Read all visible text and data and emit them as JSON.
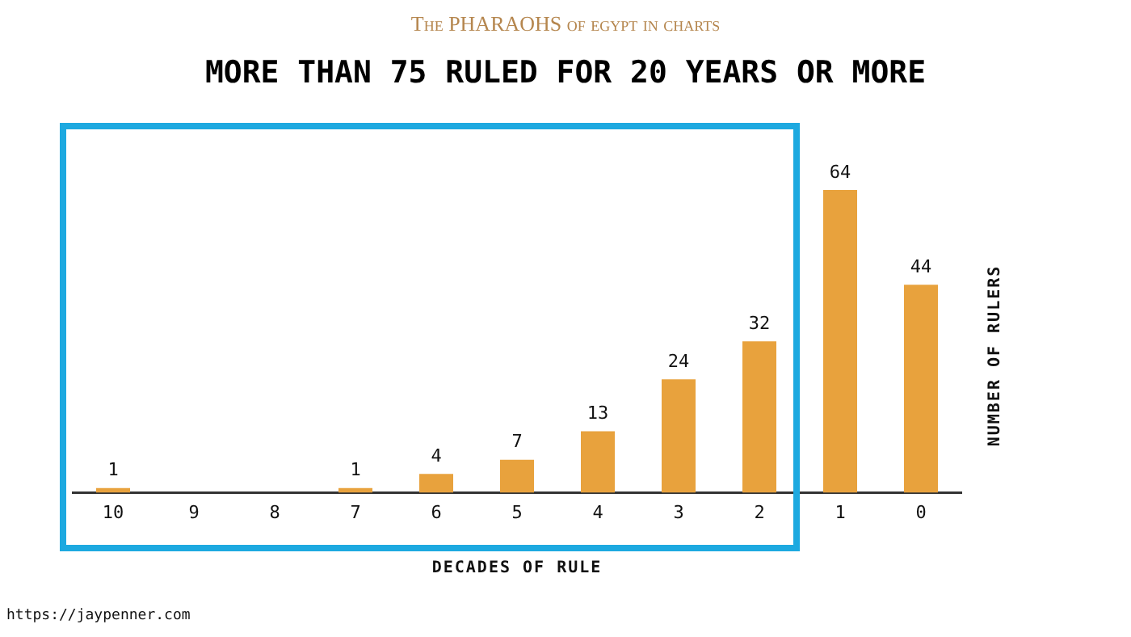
{
  "chart_data": {
    "type": "bar",
    "subtitle": "The PHARAOHS of egypt in charts",
    "title": "MORE THAN 75 RULED FOR 20 YEARS OR MORE",
    "xlabel": "DECADES OF RULE",
    "ylabel": "NUMBER OF RULERS",
    "categories": [
      "10",
      "9",
      "8",
      "7",
      "6",
      "5",
      "4",
      "3",
      "2",
      "1",
      "0"
    ],
    "values": [
      1,
      0,
      0,
      1,
      4,
      7,
      13,
      24,
      32,
      64,
      44
    ],
    "value_labels": [
      "1",
      null,
      null,
      "1",
      "4",
      "7",
      "13",
      "24",
      "32",
      "64",
      "44"
    ],
    "color": "#e8a23d",
    "grid": false,
    "legend": false,
    "annotations": [
      "https://jaypenner.com"
    ]
  }
}
